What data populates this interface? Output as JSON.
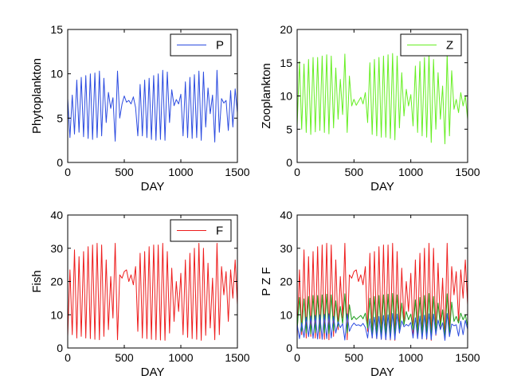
{
  "chart_data": [
    {
      "type": "line",
      "id": "phytoplankton",
      "xlabel": "DAY",
      "ylabel": "Phytoplankton",
      "xlim": [
        0,
        1500
      ],
      "ylim": [
        0,
        15
      ],
      "xticks": [
        0,
        500,
        1000,
        1500
      ],
      "yticks": [
        0,
        5,
        10,
        15
      ],
      "legend": {
        "placement": "top-right",
        "entries": [
          "P"
        ]
      },
      "series": [
        {
          "name": "P",
          "color": "#2b4be0",
          "x": [
            0,
            20,
            40,
            60,
            80,
            100,
            120,
            140,
            160,
            180,
            200,
            220,
            240,
            260,
            280,
            300,
            320,
            340,
            360,
            380,
            400,
            420,
            440,
            460,
            480,
            500,
            520,
            540,
            560,
            580,
            600,
            620,
            640,
            660,
            680,
            700,
            720,
            740,
            760,
            780,
            800,
            820,
            840,
            860,
            880,
            900,
            920,
            940,
            960,
            980,
            1000,
            1020,
            1040,
            1060,
            1080,
            1100,
            1120,
            1140,
            1160,
            1180,
            1200,
            1220,
            1240,
            1260,
            1280,
            1300,
            1320,
            1340,
            1360,
            1380,
            1400,
            1420,
            1440,
            1460,
            1480,
            1500
          ],
          "values": [
            7.2,
            2.8,
            7.6,
            3.2,
            9.3,
            3.4,
            9.6,
            2.9,
            9.8,
            2.7,
            10.0,
            2.6,
            10.1,
            2.8,
            10.3,
            3.0,
            9.5,
            4.5,
            7.9,
            6.1,
            7.3,
            2.4,
            10.3,
            5.0,
            6.6,
            7.5,
            6.8,
            7.0,
            6.6,
            7.4,
            6.2,
            3.0,
            8.8,
            3.0,
            9.3,
            2.8,
            9.5,
            2.6,
            9.8,
            2.5,
            10.0,
            2.6,
            10.4,
            2.5,
            10.2,
            4.5,
            8.2,
            6.4,
            7.1,
            6.6,
            7.7,
            3.0,
            9.1,
            2.8,
            9.6,
            2.7,
            9.9,
            2.8,
            10.3,
            2.5,
            10.2,
            4.0,
            8.4,
            5.5,
            7.6,
            2.3,
            10.4,
            3.4,
            7.2,
            6.7,
            7.0,
            3.6,
            8.1,
            4.0,
            8.3,
            5.6
          ]
        }
      ]
    },
    {
      "type": "line",
      "id": "zooplankton",
      "xlabel": "DAY",
      "ylabel": "Zooplankton",
      "xlim": [
        0,
        1500
      ],
      "ylim": [
        0,
        20
      ],
      "xticks": [
        0,
        500,
        1000,
        1500
      ],
      "yticks": [
        0,
        5,
        10,
        15,
        20
      ],
      "legend": {
        "placement": "top-right",
        "entries": [
          "Z"
        ]
      },
      "series": [
        {
          "name": "Z",
          "color": "#66ee22",
          "x": [
            0,
            20,
            40,
            60,
            80,
            100,
            120,
            140,
            160,
            180,
            200,
            220,
            240,
            260,
            280,
            300,
            320,
            340,
            360,
            380,
            400,
            420,
            440,
            460,
            480,
            500,
            520,
            540,
            560,
            580,
            600,
            620,
            640,
            660,
            680,
            700,
            720,
            740,
            760,
            780,
            800,
            820,
            840,
            860,
            880,
            900,
            920,
            940,
            960,
            980,
            1000,
            1020,
            1040,
            1060,
            1080,
            1100,
            1120,
            1140,
            1160,
            1180,
            1200,
            1220,
            1240,
            1260,
            1280,
            1300,
            1320,
            1340,
            1360,
            1380,
            1400,
            1420,
            1440,
            1460,
            1480,
            1500
          ],
          "values": [
            5.5,
            15.2,
            5.0,
            14.8,
            4.5,
            15.5,
            4.2,
            15.8,
            4.6,
            15.8,
            4.8,
            16.0,
            4.5,
            16.2,
            4.3,
            16.0,
            5.2,
            14.2,
            6.5,
            12.5,
            7.2,
            16.3,
            4.5,
            13.0,
            8.5,
            9.5,
            8.6,
            9.2,
            9.8,
            8.8,
            10.5,
            6.0,
            15.0,
            4.2,
            15.5,
            4.0,
            15.8,
            3.8,
            16.0,
            3.8,
            16.2,
            3.6,
            16.4,
            3.4,
            16.0,
            5.2,
            13.5,
            7.0,
            11.0,
            8.5,
            10.2,
            5.5,
            14.5,
            4.5,
            15.2,
            4.0,
            15.8,
            3.8,
            16.4,
            3.0,
            15.5,
            5.0,
            13.5,
            6.5,
            11.5,
            2.8,
            16.3,
            4.0,
            13.8,
            8.0,
            9.5,
            7.5,
            10.5,
            8.5,
            10.0,
            6.5
          ]
        }
      ]
    },
    {
      "type": "line",
      "id": "fish",
      "xlabel": "DAY",
      "ylabel": "Fish",
      "xlim": [
        0,
        1500
      ],
      "ylim": [
        0,
        40
      ],
      "xticks": [
        0,
        500,
        1000,
        1500
      ],
      "yticks": [
        0,
        10,
        20,
        30,
        40
      ],
      "legend": {
        "placement": "top-right",
        "entries": [
          "F"
        ]
      },
      "series": [
        {
          "name": "F",
          "color": "#ee1c1c",
          "x": [
            0,
            20,
            40,
            60,
            80,
            100,
            120,
            140,
            160,
            180,
            200,
            220,
            240,
            260,
            280,
            300,
            320,
            340,
            360,
            380,
            400,
            420,
            440,
            460,
            480,
            500,
            520,
            540,
            560,
            580,
            600,
            620,
            640,
            660,
            680,
            700,
            720,
            740,
            760,
            780,
            800,
            820,
            840,
            860,
            880,
            900,
            920,
            940,
            960,
            980,
            1000,
            1020,
            1040,
            1060,
            1080,
            1100,
            1120,
            1140,
            1160,
            1180,
            1200,
            1220,
            1240,
            1260,
            1280,
            1300,
            1320,
            1340,
            1360,
            1380,
            1400,
            1420,
            1440,
            1460,
            1480,
            1500
          ],
          "values": [
            3.5,
            23.5,
            4.0,
            29.5,
            3.0,
            27.5,
            3.5,
            29.0,
            3.0,
            30.5,
            2.8,
            31.0,
            2.6,
            31.5,
            2.5,
            31.0,
            3.5,
            26.5,
            5.5,
            21.5,
            9.0,
            31.5,
            2.5,
            22.0,
            21.0,
            23.0,
            23.5,
            20.0,
            22.0,
            19.0,
            24.5,
            5.0,
            28.5,
            3.0,
            29.0,
            2.8,
            30.5,
            2.6,
            31.0,
            2.5,
            31.0,
            2.4,
            31.5,
            2.3,
            29.0,
            4.5,
            24.0,
            8.0,
            20.0,
            11.0,
            22.5,
            4.0,
            26.5,
            3.2,
            28.5,
            2.8,
            30.0,
            2.6,
            31.5,
            2.3,
            30.0,
            3.8,
            25.5,
            6.0,
            21.0,
            2.5,
            31.5,
            4.0,
            24.5,
            16.0,
            23.0,
            8.0,
            23.5,
            15.0,
            26.5,
            13.0
          ]
        }
      ]
    },
    {
      "type": "line",
      "id": "combined",
      "xlabel": "DAY",
      "ylabel": "P  Z  F",
      "xlim": [
        0,
        1500
      ],
      "ylim": [
        0,
        40
      ],
      "xticks": [
        0,
        500,
        1000,
        1500
      ],
      "yticks": [
        0,
        10,
        20,
        30,
        40
      ],
      "legend": null,
      "series": [
        {
          "name": "F",
          "color": "#ee1c1c",
          "ref": "fish"
        },
        {
          "name": "Z",
          "color": "#1f9e1f",
          "ref": "zooplankton"
        },
        {
          "name": "P",
          "color": "#2b4be0",
          "ref": "phytoplankton"
        }
      ]
    }
  ]
}
